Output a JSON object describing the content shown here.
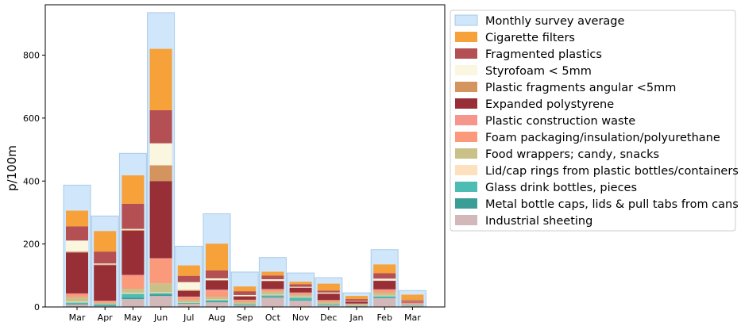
{
  "chart_data": {
    "type": "bar",
    "stacked": true,
    "ylabel": "p/100m",
    "xlabel": "",
    "ylim": [
      0,
      960
    ],
    "yticks": [
      0,
      200,
      400,
      600,
      800
    ],
    "legend_position": "outside-right-top",
    "categories": [
      "Mar",
      "Apr",
      "May",
      "Jun",
      "Jul",
      "Aug",
      "Sep",
      "Oct",
      "Nov",
      "Dec",
      "Jan",
      "Feb",
      "Mar"
    ],
    "background_series": {
      "name": "Monthly survey average",
      "color": "#d0e6fa",
      "values": [
        387,
        289,
        488,
        935,
        193,
        296,
        111,
        157,
        108,
        93,
        45,
        182,
        52
      ]
    },
    "series": [
      {
        "name": "Industrial sheeting",
        "color": "#d2b8b8",
        "values": [
          8,
          3,
          25,
          35,
          10,
          15,
          5,
          30,
          20,
          5,
          2,
          28,
          5
        ]
      },
      {
        "name": "Metal bottle caps, lids & pull tabs from cans",
        "color": "#3a9d96",
        "values": [
          2,
          2,
          5,
          5,
          1,
          3,
          2,
          3,
          2,
          1,
          1,
          2,
          1
        ]
      },
      {
        "name": "Glass drink bottles, pieces",
        "color": "#4dbdb3",
        "values": [
          4,
          4,
          12,
          4,
          2,
          4,
          2,
          4,
          8,
          3,
          1,
          4,
          1
        ]
      },
      {
        "name": "Lid/cap rings from plastic bottles/containers",
        "color": "#fde0bd",
        "values": [
          3,
          1,
          3,
          3,
          1,
          2,
          1,
          2,
          2,
          1,
          1,
          2,
          1
        ]
      },
      {
        "name": "Food wrappers; candy, snacks",
        "color": "#c9c187",
        "values": [
          14,
          3,
          12,
          28,
          8,
          8,
          6,
          10,
          6,
          6,
          3,
          9,
          2
        ]
      },
      {
        "name": "Foam packaging/insulation/polyurethane",
        "color": "#fa9a7a",
        "values": [
          8,
          4,
          40,
          77,
          8,
          18,
          5,
          5,
          5,
          4,
          2,
          8,
          3
        ]
      },
      {
        "name": "Plastic construction waste",
        "color": "#f5958b",
        "values": [
          4,
          3,
          5,
          3,
          3,
          5,
          2,
          3,
          3,
          2,
          1,
          3,
          1
        ]
      },
      {
        "name": "Expanded polystyrene",
        "color": "#982f36",
        "values": [
          130,
          113,
          140,
          245,
          18,
          29,
          10,
          25,
          15,
          20,
          6,
          27,
          3
        ]
      },
      {
        "name": "Plastic fragments angular <5mm",
        "color": "#d4945e",
        "values": [
          3,
          2,
          3,
          50,
          3,
          2,
          2,
          1,
          1,
          1,
          1,
          1,
          1
        ]
      },
      {
        "name": "Styrofoam < 5mm",
        "color": "#fbf6df",
        "values": [
          35,
          3,
          3,
          70,
          25,
          5,
          3,
          5,
          2,
          3,
          1,
          6,
          1
        ]
      },
      {
        "name": "Fragmented plastics",
        "color": "#b44f54",
        "values": [
          45,
          38,
          80,
          105,
          20,
          25,
          12,
          12,
          8,
          6,
          6,
          17,
          3
        ]
      },
      {
        "name": "Cigarette filters",
        "color": "#f6a13a",
        "values": [
          50,
          65,
          90,
          195,
          33,
          85,
          15,
          12,
          8,
          22,
          10,
          28,
          17
        ]
      }
    ]
  }
}
